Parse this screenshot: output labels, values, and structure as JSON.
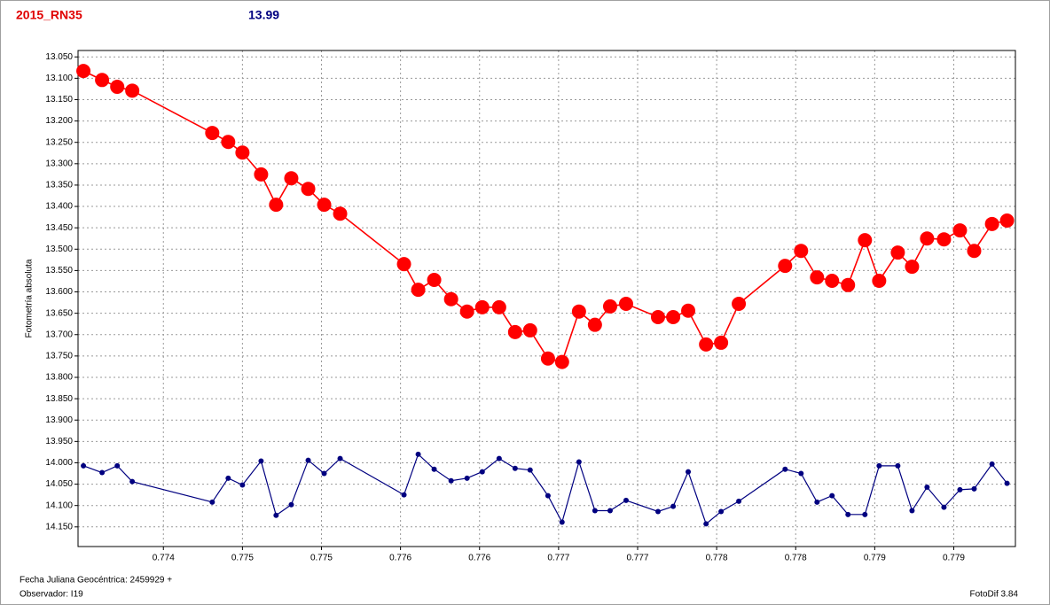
{
  "chart_data": {
    "type": "line",
    "title": "2015_RN35",
    "subtitle": "13.99",
    "ylabel": "Fotometría absoluta",
    "xlabel": "Fecha Juliana Geocéntrica: 2459929 +",
    "observer": "Observador: I19",
    "software": "FotoDif 3.84",
    "grid": true,
    "xlim": [
      0.77346,
      0.77939
    ],
    "ylim": [
      14.196,
      13.035
    ],
    "xticks": [
      0.774,
      {
        "value": 0.7745,
        "label": "0.775"
      },
      0.775,
      {
        "value": 0.7755,
        "label": "0.776"
      },
      0.776,
      {
        "value": 0.7765,
        "label": "0.777"
      },
      0.777,
      {
        "value": 0.7775,
        "label": "0.778"
      },
      0.778,
      {
        "value": 0.7785,
        "label": "0.779"
      },
      0.779
    ],
    "yticks": [
      {
        "value": 13.05,
        "label": "13.050"
      },
      {
        "value": 13.1,
        "label": "13.100"
      },
      {
        "value": 13.15,
        "label": "13.150"
      },
      {
        "value": 13.2,
        "label": "13.200"
      },
      {
        "value": 13.25,
        "label": "13.250"
      },
      {
        "value": 13.3,
        "label": "13.300"
      },
      {
        "value": 13.35,
        "label": "13.350"
      },
      {
        "value": 13.4,
        "label": "13.400"
      },
      {
        "value": 13.45,
        "label": "13.450"
      },
      {
        "value": 13.5,
        "label": "13.500"
      },
      {
        "value": 13.55,
        "label": "13.550"
      },
      {
        "value": 13.6,
        "label": "13.600"
      },
      {
        "value": 13.65,
        "label": "13.650"
      },
      {
        "value": 13.7,
        "label": "13.700"
      },
      {
        "value": 13.75,
        "label": "13.750"
      },
      {
        "value": 13.8,
        "label": "13.800"
      },
      {
        "value": 13.85,
        "label": "13.850"
      },
      {
        "value": 13.9,
        "label": "13.900"
      },
      {
        "value": 13.95,
        "label": "13.950"
      },
      {
        "value": 14.0,
        "label": "14.000"
      },
      {
        "value": 14.05,
        "label": "14.050"
      },
      {
        "value": 14.1,
        "label": "14.100"
      },
      {
        "value": 14.15,
        "label": "14.150"
      }
    ],
    "x": [
      0.773494,
      0.773612,
      0.773708,
      0.773803,
      0.774309,
      0.77441,
      0.7745,
      0.774618,
      0.774713,
      0.774809,
      0.774916,
      0.775017,
      0.775118,
      0.775522,
      0.775612,
      0.775713,
      0.77582,
      0.775921,
      0.776017,
      0.776124,
      0.776225,
      0.77632,
      0.776433,
      0.776522,
      0.776629,
      0.77673,
      0.776826,
      0.776927,
      0.777129,
      0.777225,
      0.77732,
      0.777433,
      0.777528,
      0.77764,
      0.777933,
      0.778034,
      0.778135,
      0.77823,
      0.778331,
      0.778438,
      0.778528,
      0.778646,
      0.778736,
      0.778831,
      0.778938,
      0.779039,
      0.779129,
      0.779242,
      0.779337
    ],
    "series": [
      {
        "color": "#ff0000",
        "values": [
          13.083,
          13.104,
          13.12,
          13.129,
          13.228,
          13.249,
          13.274,
          13.325,
          13.396,
          13.334,
          13.359,
          13.396,
          13.417,
          13.535,
          13.595,
          13.572,
          13.617,
          13.646,
          13.636,
          13.636,
          13.694,
          13.69,
          13.756,
          13.764,
          13.646,
          13.677,
          13.634,
          13.628,
          13.659,
          13.659,
          13.644,
          13.723,
          13.719,
          13.628,
          13.539,
          13.504,
          13.566,
          13.574,
          13.584,
          13.479,
          13.574,
          13.508,
          13.541,
          13.475,
          13.477,
          13.456,
          13.504,
          13.441,
          13.433
        ]
      },
      {
        "color": "#000080",
        "values": [
          14.007,
          14.023,
          14.007,
          14.044,
          14.092,
          14.036,
          14.052,
          13.996,
          14.123,
          14.098,
          13.994,
          14.025,
          13.99,
          14.075,
          13.98,
          14.015,
          14.042,
          14.036,
          14.021,
          13.99,
          14.013,
          14.017,
          14.077,
          14.139,
          13.998,
          14.112,
          14.112,
          14.088,
          14.114,
          14.102,
          14.021,
          14.143,
          14.114,
          14.09,
          14.015,
          14.025,
          14.092,
          14.077,
          14.121,
          14.121,
          14.007,
          14.007,
          14.112,
          14.057,
          14.104,
          14.063,
          14.061,
          14.003,
          14.048
        ]
      }
    ]
  }
}
